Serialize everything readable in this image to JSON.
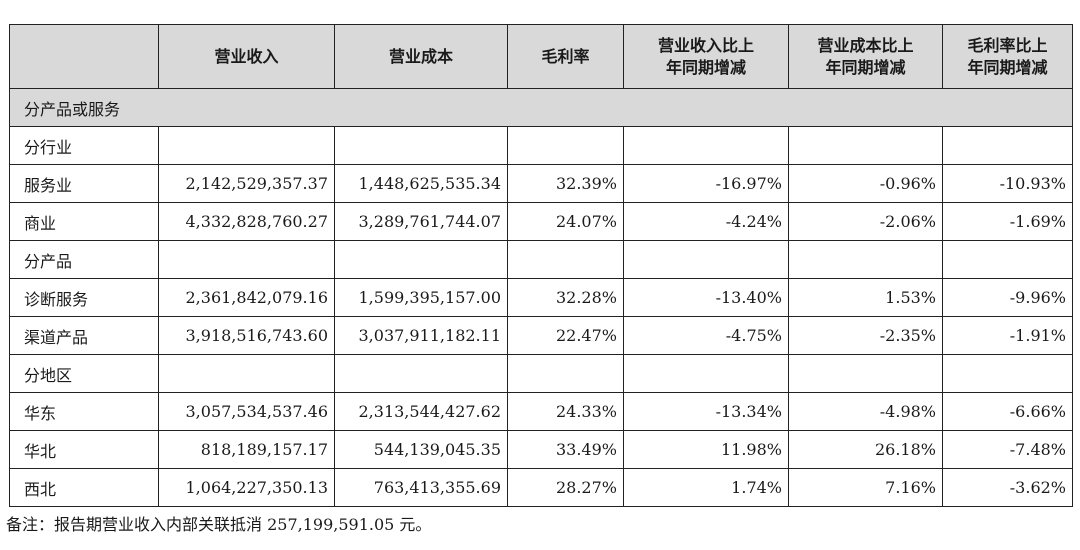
{
  "table": {
    "headers": [
      "",
      "营业收入",
      "营业成本",
      "毛利率",
      "营业收入比上年同期增减",
      "营业成本比上年同期增减",
      "毛利率比上年同期增减"
    ],
    "header_lines": [
      [
        "",
        ""
      ],
      [
        "营业收入",
        ""
      ],
      [
        "营业成本",
        ""
      ],
      [
        "毛利率",
        ""
      ],
      [
        "营业收入比上",
        "年同期增减"
      ],
      [
        "营业成本比上",
        "年同期增减"
      ],
      [
        "毛利率比上",
        "年同期增减"
      ]
    ],
    "section_title": "分产品或服务",
    "groups": [
      {
        "title": "分行业",
        "rows": [
          {
            "label": "服务业",
            "values": [
              "2,142,529,357.37",
              "1,448,625,535.34",
              "32.39%",
              "-16.97%",
              "-0.96%",
              "-10.93%"
            ]
          },
          {
            "label": "商业",
            "values": [
              "4,332,828,760.27",
              "3,289,761,744.07",
              "24.07%",
              "-4.24%",
              "-2.06%",
              "-1.69%"
            ]
          }
        ]
      },
      {
        "title": "分产品",
        "rows": [
          {
            "label": "诊断服务",
            "values": [
              "2,361,842,079.16",
              "1,599,395,157.00",
              "32.28%",
              "-13.40%",
              "1.53%",
              "-9.96%"
            ]
          },
          {
            "label": "渠道产品",
            "values": [
              "3,918,516,743.60",
              "3,037,911,182.11",
              "22.47%",
              "-4.75%",
              "-2.35%",
              "-1.91%"
            ]
          }
        ]
      },
      {
        "title": "分地区",
        "rows": [
          {
            "label": "华东",
            "values": [
              "3,057,534,537.46",
              "2,313,544,427.62",
              "24.33%",
              "-13.34%",
              "-4.98%",
              "-6.66%"
            ]
          },
          {
            "label": "华北",
            "values": [
              "818,189,157.17",
              "544,139,045.35",
              "33.49%",
              "11.98%",
              "26.18%",
              "-7.48%"
            ]
          },
          {
            "label": "西北",
            "values": [
              "1,064,227,350.13",
              "763,413,355.69",
              "28.27%",
              "1.74%",
              "7.16%",
              "-3.62%"
            ]
          }
        ]
      }
    ]
  },
  "footnote": "备注：报告期营业收入内部关联抵消 257,199,591.05 元。"
}
